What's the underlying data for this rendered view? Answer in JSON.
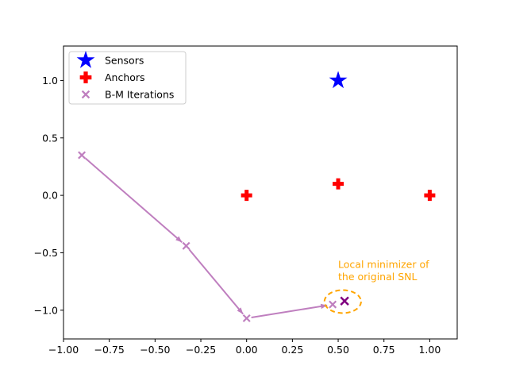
{
  "chart_data": {
    "type": "scatter",
    "title": "",
    "xlabel": "",
    "ylabel": "",
    "xlim": [
      -1.0,
      1.15
    ],
    "ylim": [
      -1.25,
      1.3
    ],
    "grid": false,
    "legend_placement": "upper-left",
    "x_ticks": [
      {
        "value": -1.0,
        "label": "−1.00"
      },
      {
        "value": -0.75,
        "label": "−0.75"
      },
      {
        "value": -0.5,
        "label": "−0.50"
      },
      {
        "value": -0.25,
        "label": "−0.25"
      },
      {
        "value": 0.0,
        "label": "0.00"
      },
      {
        "value": 0.25,
        "label": "0.25"
      },
      {
        "value": 0.5,
        "label": "0.50"
      },
      {
        "value": 0.75,
        "label": "0.75"
      },
      {
        "value": 1.0,
        "label": "1.00"
      }
    ],
    "y_ticks": [
      {
        "value": -1.0,
        "label": "−1.0"
      },
      {
        "value": -0.5,
        "label": "−0.5"
      },
      {
        "value": 0.0,
        "label": "0.0"
      },
      {
        "value": 0.5,
        "label": "0.5"
      },
      {
        "value": 1.0,
        "label": "1.0"
      }
    ],
    "series": [
      {
        "name": "Sensors",
        "marker": "star",
        "color": "#0000ff",
        "points": [
          {
            "x": 0.5,
            "y": 1.0
          }
        ]
      },
      {
        "name": "Anchors",
        "marker": "plus",
        "color": "#ff0000",
        "points": [
          {
            "x": 0.0,
            "y": 0.0
          },
          {
            "x": 0.5,
            "y": 0.1
          },
          {
            "x": 1.0,
            "y": 0.0
          }
        ]
      },
      {
        "name": "B-M Iterations",
        "marker": "x",
        "color": "#bf7fbf",
        "points": [
          {
            "x": -0.9,
            "y": 0.35
          },
          {
            "x": -0.33,
            "y": -0.44
          },
          {
            "x": 0.0,
            "y": -1.07
          },
          {
            "x": 0.47,
            "y": -0.95
          }
        ]
      }
    ],
    "arrows": [
      {
        "from": {
          "x": -0.9,
          "y": 0.35
        },
        "to": {
          "x": -0.33,
          "y": -0.44
        }
      },
      {
        "from": {
          "x": -0.33,
          "y": -0.44
        },
        "to": {
          "x": 0.0,
          "y": -1.07
        }
      },
      {
        "from": {
          "x": 0.0,
          "y": -1.07
        },
        "to": {
          "x": 0.47,
          "y": -0.95
        }
      }
    ],
    "minimizer": {
      "x": 0.535,
      "y": -0.92,
      "color": "#800080"
    },
    "annotation": {
      "lines": [
        "Local minimizer of",
        "the original SNL"
      ],
      "x": 0.5,
      "y": -0.63,
      "color": "#ffa500",
      "ellipse": {
        "cx": 0.525,
        "cy": -0.925,
        "rx": 0.1,
        "ry": 0.1
      }
    },
    "arrow_color": "#bf7fbf"
  }
}
